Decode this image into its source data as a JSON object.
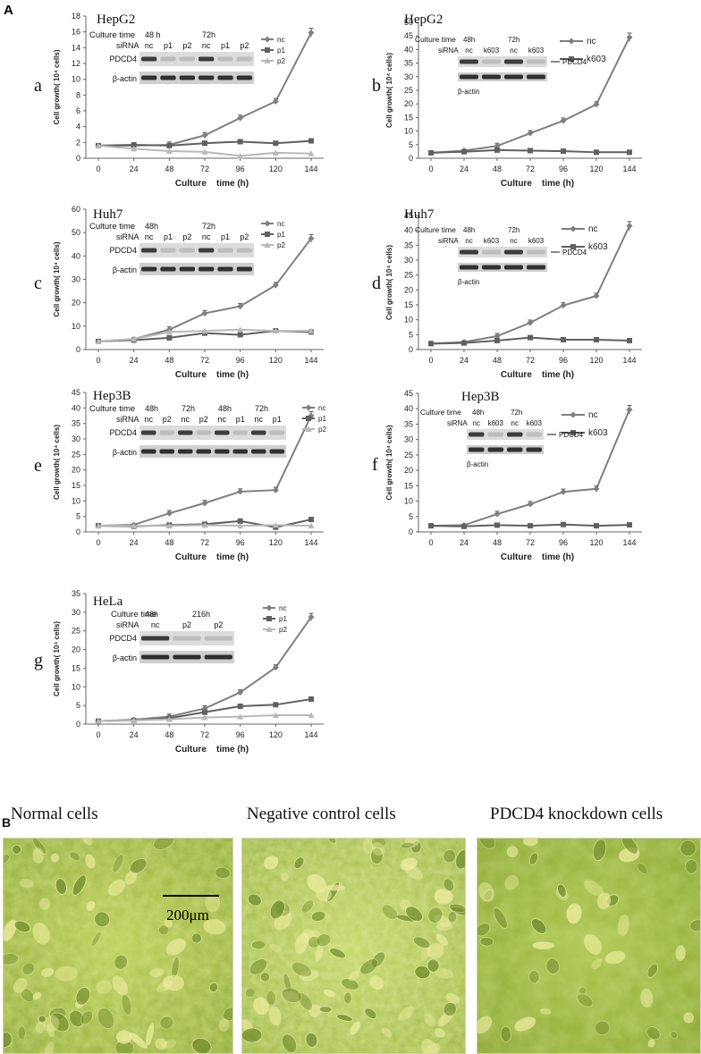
{
  "figure": {
    "panel_A_label": "A",
    "panel_B_label": "B",
    "scale_bar_label": "200μm"
  },
  "chart_data": [
    {
      "type": "line",
      "panel": "a",
      "title": "HepG2",
      "xlabel": "Culture    time (h)",
      "ylabel": "Cell growth( 10⁴ cells)",
      "x": [
        0,
        24,
        48,
        72,
        96,
        120,
        144
      ],
      "ylim": [
        0,
        18
      ],
      "yticks": [
        0,
        2,
        4,
        6,
        8,
        10,
        12,
        14,
        16,
        18
      ],
      "series": [
        {
          "name": "nc",
          "values": [
            1.6,
            1.6,
            1.7,
            2.9,
            5.1,
            7.2,
            15.9
          ],
          "color": "#7f7f7f",
          "marker": "diamond"
        },
        {
          "name": "p1",
          "values": [
            1.6,
            1.7,
            1.6,
            1.9,
            2.1,
            1.9,
            2.2
          ],
          "color": "#606060",
          "marker": "square"
        },
        {
          "name": "p2",
          "values": [
            1.6,
            1.2,
            0.9,
            0.8,
            0.3,
            0.7,
            0.6
          ],
          "color": "#b8b8b8",
          "marker": "triangle"
        }
      ],
      "blot": {
        "culture_time_label": "Culture time",
        "sirna_label": "siRNA",
        "times": [
          "48 h",
          "72h"
        ],
        "lanes": [
          "nc",
          "p1",
          "p2",
          "nc",
          "p1",
          "p2"
        ],
        "proteins": [
          "PDCD4",
          "β-actin"
        ]
      }
    },
    {
      "type": "line",
      "panel": "b",
      "title": "HepG2",
      "xlabel": "Culture    time (h)",
      "ylabel": "Cell growth( 10⁴ cells)",
      "x": [
        0,
        24,
        48,
        72,
        96,
        120,
        144
      ],
      "ylim": [
        0,
        50
      ],
      "yticks": [
        0,
        5,
        10,
        15,
        20,
        25,
        30,
        35,
        40,
        45,
        50
      ],
      "series": [
        {
          "name": "nc",
          "values": [
            2,
            2.8,
            4.5,
            9.2,
            13.8,
            19.8,
            44.5
          ],
          "color": "#7f7f7f",
          "marker": "diamond"
        },
        {
          "name": "k603",
          "values": [
            2,
            2.4,
            3.0,
            2.8,
            2.6,
            2.2,
            2.2
          ],
          "color": "#606060",
          "marker": "square"
        }
      ],
      "blot": {
        "culture_time_label": "Culture time",
        "sirna_label": "siRNA",
        "times": [
          "48h",
          "72h"
        ],
        "lanes": [
          "nc",
          "k603",
          "nc",
          "k603"
        ],
        "proteins": [
          "PDCD4",
          "β-actin"
        ]
      }
    },
    {
      "type": "line",
      "panel": "c",
      "title": "Huh7",
      "xlabel": "Culture    time (h)",
      "ylabel": "Cell growth( 10⁴ cells)",
      "x": [
        0,
        24,
        48,
        72,
        96,
        120,
        144
      ],
      "ylim": [
        0,
        60
      ],
      "yticks": [
        0,
        10,
        20,
        30,
        40,
        50,
        60
      ],
      "series": [
        {
          "name": "nc",
          "values": [
            3.5,
            4.5,
            8.5,
            15.5,
            18.5,
            27.5,
            47.5
          ],
          "color": "#7f7f7f",
          "marker": "diamond"
        },
        {
          "name": "p1",
          "values": [
            3.5,
            4.0,
            5.0,
            7.0,
            6.3,
            8.0,
            7.5
          ],
          "color": "#606060",
          "marker": "square"
        },
        {
          "name": "p2",
          "values": [
            3.5,
            4.5,
            7.5,
            8.0,
            8.5,
            8.0,
            8.0
          ],
          "color": "#b8b8b8",
          "marker": "triangle"
        }
      ],
      "blot": {
        "culture_time_label": "Culture time",
        "sirna_label": "siRNA",
        "times": [
          "48h",
          "72h"
        ],
        "lanes": [
          "nc",
          "p1",
          "p2",
          "nc",
          "p1",
          "p2"
        ],
        "proteins": [
          "PDCD4",
          "β-actin"
        ]
      }
    },
    {
      "type": "line",
      "panel": "d",
      "title": "Huh7",
      "xlabel": "Culture    time (h)",
      "ylabel": "Cell growth( 10⁴ cells)",
      "x": [
        0,
        24,
        48,
        72,
        96,
        120,
        144
      ],
      "ylim": [
        0,
        45
      ],
      "yticks": [
        0,
        5,
        10,
        15,
        20,
        25,
        30,
        35,
        40,
        45
      ],
      "series": [
        {
          "name": "nc",
          "values": [
            2,
            2.5,
            4.5,
            9,
            14.8,
            18,
            41.5
          ],
          "color": "#7f7f7f",
          "marker": "diamond"
        },
        {
          "name": "k603",
          "values": [
            2,
            2.2,
            3.0,
            4.0,
            3.3,
            3.3,
            3.0
          ],
          "color": "#606060",
          "marker": "square"
        }
      ],
      "blot": {
        "culture_time_label": "Culture time",
        "sirna_label": "siRNA",
        "times": [
          "48h",
          "72h"
        ],
        "lanes": [
          "nc",
          "k603",
          "nc",
          "k603"
        ],
        "proteins": [
          "PDCD4",
          "β-actin"
        ]
      }
    },
    {
      "type": "line",
      "panel": "e",
      "title": "Hep3B",
      "xlabel": "Culture    time (h)",
      "ylabel": "Cell growth( 10⁴ cells)",
      "x": [
        0,
        24,
        48,
        72,
        96,
        120,
        144
      ],
      "ylim": [
        0,
        45
      ],
      "yticks": [
        0,
        5,
        10,
        15,
        20,
        25,
        30,
        35,
        40,
        45
      ],
      "series": [
        {
          "name": "nc",
          "values": [
            2,
            2.3,
            6,
            9.3,
            13,
            13.5,
            37.5
          ],
          "color": "#7f7f7f",
          "marker": "diamond"
        },
        {
          "name": "p1",
          "values": [
            2,
            1.8,
            2.2,
            2.5,
            3.5,
            1.5,
            4
          ],
          "color": "#606060",
          "marker": "square"
        },
        {
          "name": "p2",
          "values": [
            2,
            2.0,
            2.0,
            2.2,
            2.0,
            2.2,
            2.0
          ],
          "color": "#b8b8b8",
          "marker": "triangle"
        }
      ],
      "blot": {
        "culture_time_label": "Culture time",
        "sirna_label": "siRNA",
        "times": [
          "48h",
          "72h",
          "48h",
          "72h"
        ],
        "lanes": [
          "nc",
          "p2",
          "nc",
          "p2",
          "nc",
          "p1",
          "nc",
          "p1"
        ],
        "proteins": [
          "PDCD4",
          "β-actin"
        ]
      }
    },
    {
      "type": "line",
      "panel": "f",
      "title": "Hep3B",
      "xlabel": "Culture    time (h)",
      "ylabel": "Cell growth( 10⁴ cells)",
      "x": [
        0,
        24,
        48,
        72,
        96,
        120,
        144
      ],
      "ylim": [
        0,
        45
      ],
      "yticks": [
        0,
        5,
        10,
        15,
        20,
        25,
        30,
        35,
        40,
        45
      ],
      "series": [
        {
          "name": "nc",
          "values": [
            2,
            2.2,
            5.8,
            9,
            13,
            14,
            39.7
          ],
          "color": "#7f7f7f",
          "marker": "diamond"
        },
        {
          "name": "k603",
          "values": [
            2,
            1.8,
            2.2,
            2.0,
            2.4,
            2.0,
            2.3
          ],
          "color": "#606060",
          "marker": "square"
        }
      ],
      "blot": {
        "culture_time_label": "Culture time",
        "sirna_label": "siRNA",
        "times": [
          "48h",
          "72h"
        ],
        "lanes": [
          "nc",
          "k603",
          "nc",
          "k603"
        ],
        "proteins": [
          "PDCD4",
          "β-actin"
        ]
      }
    },
    {
      "type": "line",
      "panel": "g",
      "title": "HeLa",
      "xlabel": "Culture    time (h)",
      "ylabel": "Cell growth( 10⁴ cells)",
      "x": [
        0,
        24,
        48,
        72,
        96,
        120,
        144
      ],
      "ylim": [
        0,
        35
      ],
      "yticks": [
        0,
        5,
        10,
        15,
        20,
        25,
        30,
        35
      ],
      "series": [
        {
          "name": "nc",
          "values": [
            0.8,
            1.2,
            2.0,
            4.2,
            8.5,
            15.2,
            28.7
          ],
          "color": "#7f7f7f",
          "marker": "diamond"
        },
        {
          "name": "p1",
          "values": [
            0.8,
            1.0,
            1.6,
            3.2,
            4.8,
            5.2,
            6.7
          ],
          "color": "#606060",
          "marker": "square"
        },
        {
          "name": "p2",
          "values": [
            0.8,
            1.0,
            1.3,
            1.8,
            2.0,
            2.4,
            2.4
          ],
          "color": "#b8b8b8",
          "marker": "triangle"
        }
      ],
      "blot": {
        "culture_time_label": "Culture time",
        "sirna_label": "siRNA",
        "times": [
          "48h",
          "216h"
        ],
        "lanes": [
          "nc",
          "p2",
          "p2"
        ],
        "proteins": [
          "PDCD4",
          "β-actin"
        ]
      }
    }
  ],
  "photos": [
    {
      "label": "Normal cells"
    },
    {
      "label": "Negative control cells"
    },
    {
      "label": "PDCD4 knockdown cells"
    }
  ]
}
